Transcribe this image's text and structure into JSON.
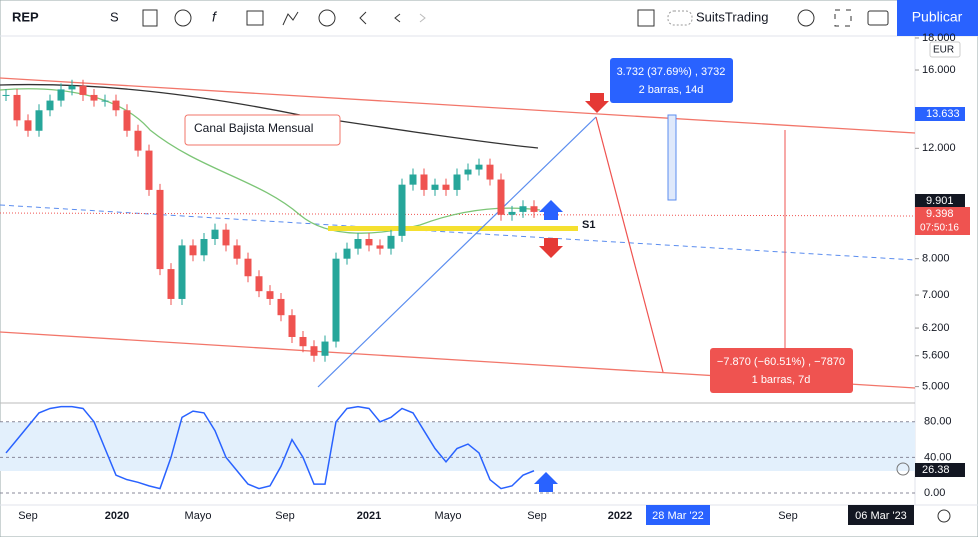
{
  "toolbar": {
    "symbol": "REP",
    "interval": "S",
    "account": "SuitsTrading",
    "publish": "Publicar"
  },
  "chart": {
    "log_scale": true,
    "ylim": [
      4.76,
      18.13
    ],
    "price_axis": [
      {
        "value": 18,
        "label": "18.000"
      },
      {
        "value": 16,
        "label": "16.000"
      },
      {
        "value": 12,
        "label": "12.000"
      },
      {
        "value": 8,
        "label": "8.000"
      },
      {
        "value": 7,
        "label": "7.000"
      },
      {
        "value": 6.2,
        "label": "6.200"
      },
      {
        "value": 5.6,
        "label": "5.600"
      },
      {
        "value": 5,
        "label": "5.000"
      }
    ],
    "currency": "EUR",
    "closes": [
      14.6,
      13.3,
      12.8,
      13.8,
      14.3,
      14.9,
      15.1,
      14.6,
      14.3,
      14.3,
      13.8,
      12.8,
      11.9,
      10.3,
      7.7,
      6.9,
      8.4,
      8.1,
      8.6,
      8.9,
      8.4,
      8.0,
      7.5,
      7.1,
      6.9,
      6.5,
      6.0,
      5.8,
      5.6,
      5.9,
      8.0,
      8.3,
      8.6,
      8.4,
      8.3,
      8.7,
      10.5,
      10.9,
      10.3,
      10.5,
      10.3,
      10.9,
      11.1,
      11.3,
      10.7,
      9.4,
      9.5,
      9.7,
      9.5
    ],
    "badges": {
      "high": "13.633",
      "level": "9.901",
      "last": "9.398",
      "countdown": "07:50:16",
      "stoch": "26.38"
    },
    "annotations": {
      "channel": "Canal Bajista Mensual",
      "support": "S1",
      "up_measure": [
        "3.732 (37.69%) , 3732",
        "2 barras, 14d"
      ],
      "down_measure": [
        "−7.870 (−60.51%) , −7870",
        "1 barras, 7d"
      ]
    },
    "stoch": {
      "ylim": [
        0,
        100
      ],
      "ticks": [
        {
          "value": 80,
          "label": "80.00"
        },
        {
          "value": 40,
          "label": "40.00"
        },
        {
          "value": 0,
          "label": "0.00"
        }
      ],
      "k": [
        45,
        60,
        75,
        90,
        95,
        97,
        97,
        95,
        80,
        50,
        20,
        15,
        12,
        8,
        5,
        40,
        85,
        92,
        90,
        70,
        40,
        25,
        10,
        5,
        8,
        30,
        60,
        40,
        10,
        10,
        80,
        95,
        97,
        95,
        80,
        85,
        95,
        90,
        70,
        50,
        35,
        50,
        55,
        45,
        15,
        5,
        8,
        20,
        25
      ]
    },
    "time_axis": [
      "Sep",
      "2020",
      "Mayo",
      "Sep",
      "2021",
      "Mayo",
      "Sep",
      "2022",
      "Sep"
    ],
    "time_markers": [
      "28 Mar '22",
      "06 Mar '23"
    ]
  }
}
